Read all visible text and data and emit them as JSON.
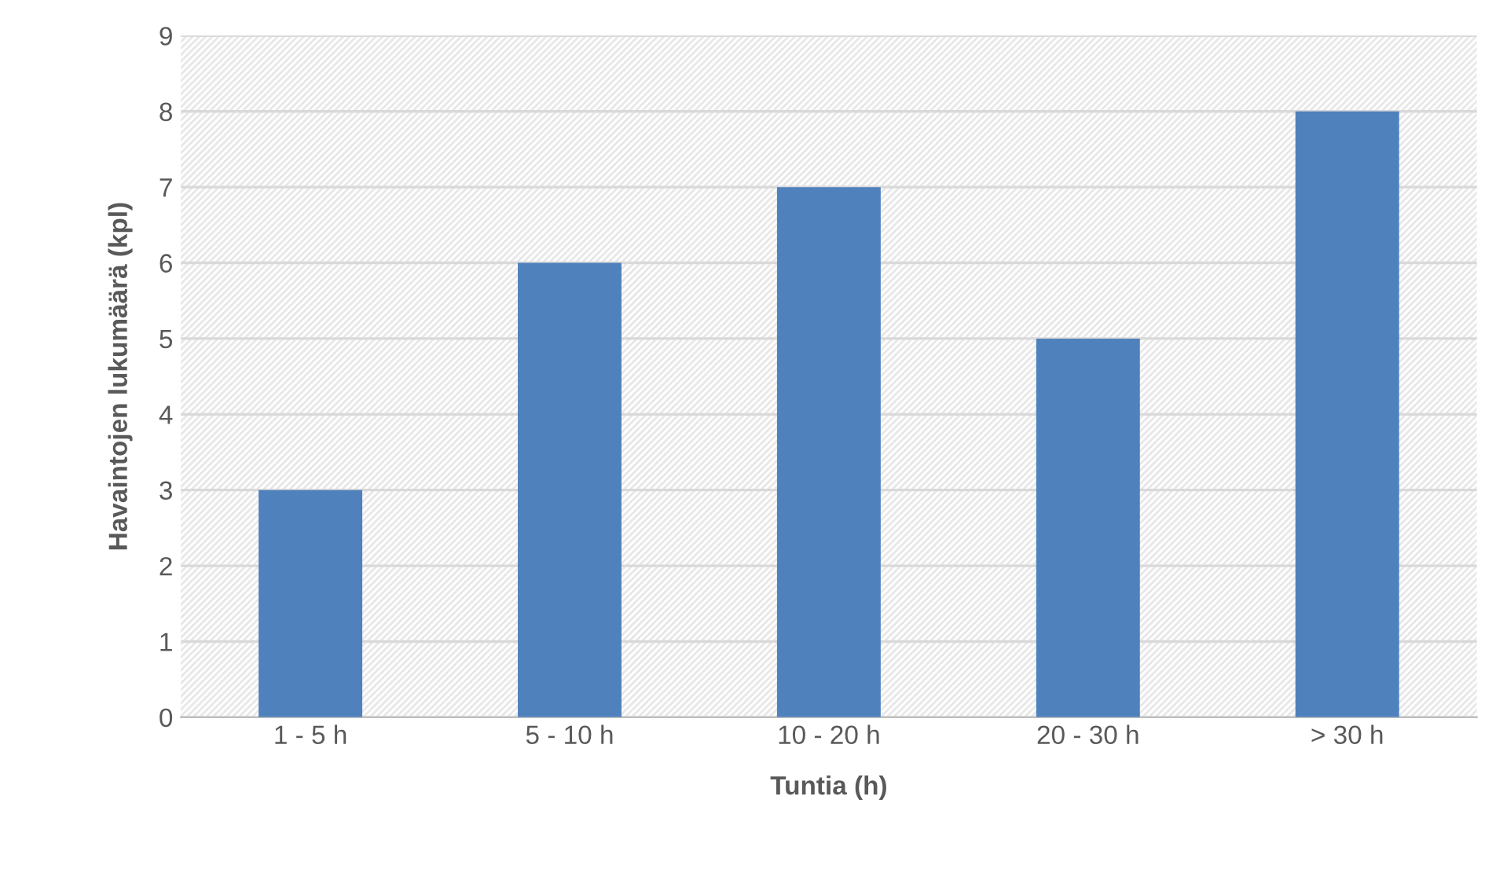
{
  "chart_data": {
    "type": "bar",
    "xlabel": "Tuntia (h)",
    "ylabel": "Havaintojen lukumäärä (kpl)",
    "categories": [
      "1 - 5 h",
      "5 - 10 h",
      "10 - 20 h",
      "20 - 30 h",
      "> 30 h"
    ],
    "values": [
      3,
      6,
      7,
      5,
      8
    ],
    "color": "#4f81bd",
    "ylim": [
      0,
      9
    ],
    "yticks": [
      0,
      1,
      2,
      3,
      4,
      5,
      6,
      7,
      8,
      9
    ],
    "grid": "y",
    "legend": false
  }
}
